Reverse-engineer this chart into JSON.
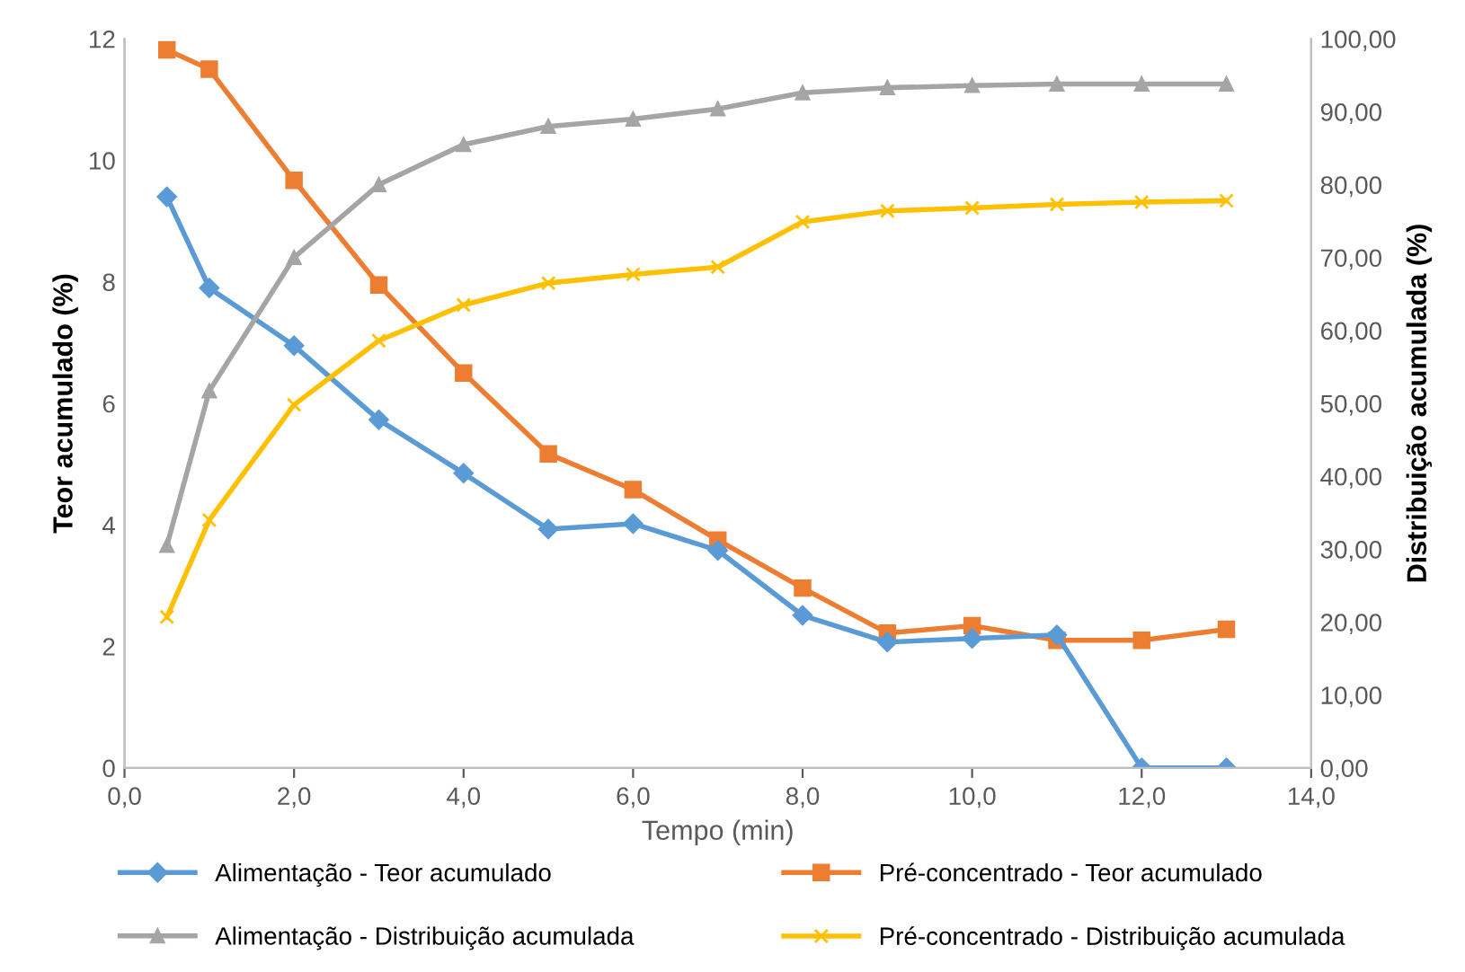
{
  "chart_data": {
    "type": "line",
    "xlabel": "Tempo (min)",
    "ylabel": "Teor acumulado (%)",
    "y2label": "Distribuição acumulada (%)",
    "x": [
      0.5,
      1,
      2,
      3,
      4,
      5,
      6,
      7,
      8,
      9,
      10,
      11,
      12,
      13
    ],
    "series": [
      {
        "name": "Alimentação - Teor acumulado",
        "color": "#5b9bd5",
        "marker": "diamond",
        "values": [
          9.4,
          7.9,
          6.95,
          5.73,
          4.85,
          3.93,
          4.02,
          3.58,
          2.51,
          2.07,
          2.13,
          2.19,
          0,
          0
        ]
      },
      {
        "name": "Pré-concentrado - Teor acumulado",
        "color": "#ed7d31",
        "marker": "square",
        "values": [
          11.82,
          11.5,
          9.67,
          7.95,
          6.5,
          5.17,
          4.58,
          3.75,
          2.96,
          2.22,
          2.34,
          2.1,
          2.1,
          2.28
        ]
      },
      {
        "name": "Alimentação - Distribuição acumulada",
        "color": "#a5a5a5",
        "marker": "triangle",
        "axis": "y2",
        "values": [
          30.5,
          51.7,
          70,
          80,
          85.5,
          88,
          89,
          90.4,
          92.6,
          93.3,
          93.6,
          93.8,
          93.8,
          93.8
        ]
      },
      {
        "name": "Pré-concentrado - Distribuição acumulada",
        "color": "#ffc000",
        "marker": "cross",
        "axis": "y2",
        "values": [
          20.7,
          34,
          49.8,
          58.6,
          63.5,
          66.5,
          67.7,
          68.7,
          74.9,
          76.4,
          76.8,
          77.3,
          77.6,
          77.8
        ]
      }
    ],
    "xlim": [
      0,
      14
    ],
    "xticks": [
      {
        "value": 0,
        "label": "0,0"
      },
      {
        "value": 2,
        "label": "2,0"
      },
      {
        "value": 4,
        "label": "4,0"
      },
      {
        "value": 6,
        "label": "6,0"
      },
      {
        "value": 8,
        "label": "8,0"
      },
      {
        "value": 10,
        "label": "10,0"
      },
      {
        "value": 12,
        "label": "12,0"
      },
      {
        "value": 14,
        "label": "14,0"
      }
    ],
    "ylim": [
      0,
      12
    ],
    "yticks": [
      0,
      2,
      4,
      6,
      8,
      10,
      12
    ],
    "y2lim": [
      0,
      100
    ],
    "y2ticks": [
      {
        "value": 0,
        "label": "0,00"
      },
      {
        "value": 10,
        "label": "10,00"
      },
      {
        "value": 20,
        "label": "20,00"
      },
      {
        "value": 30,
        "label": "30,00"
      },
      {
        "value": 40,
        "label": "40,00"
      },
      {
        "value": 50,
        "label": "50,00"
      },
      {
        "value": 60,
        "label": "60,00"
      },
      {
        "value": 70,
        "label": "70,00"
      },
      {
        "value": 80,
        "label": "80,00"
      },
      {
        "value": 90,
        "label": "90,00"
      },
      {
        "value": 100,
        "label": "100,00"
      }
    ],
    "grid": false,
    "legend": "bottom",
    "line_style": "solid"
  }
}
